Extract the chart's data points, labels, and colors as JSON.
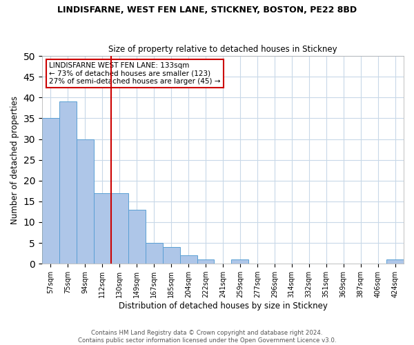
{
  "title": "LINDISFARNE, WEST FEN LANE, STICKNEY, BOSTON, PE22 8BD",
  "subtitle": "Size of property relative to detached houses in Stickney",
  "xlabel": "Distribution of detached houses by size in Stickney",
  "ylabel": "Number of detached properties",
  "bar_labels": [
    "57sqm",
    "75sqm",
    "94sqm",
    "112sqm",
    "130sqm",
    "149sqm",
    "167sqm",
    "185sqm",
    "204sqm",
    "222sqm",
    "241sqm",
    "259sqm",
    "277sqm",
    "296sqm",
    "314sqm",
    "332sqm",
    "351sqm",
    "369sqm",
    "387sqm",
    "406sqm",
    "424sqm"
  ],
  "bar_values": [
    35,
    39,
    30,
    17,
    17,
    13,
    5,
    4,
    2,
    1,
    0,
    1,
    0,
    0,
    0,
    0,
    0,
    0,
    0,
    0,
    1
  ],
  "bar_color": "#aec6e8",
  "bar_edge_color": "#5a9fd4",
  "grid_color": "#c8d8e8",
  "property_line_x": 3.5,
  "property_line_color": "#cc0000",
  "annotation_title": "LINDISFARNE WEST FEN LANE: 133sqm",
  "annotation_line1": "← 73% of detached houses are smaller (123)",
  "annotation_line2": "27% of semi-detached houses are larger (45) →",
  "annotation_box_color": "#cc0000",
  "ylim": [
    0,
    50
  ],
  "yticks": [
    0,
    5,
    10,
    15,
    20,
    25,
    30,
    35,
    40,
    45,
    50
  ],
  "footer_line1": "Contains HM Land Registry data © Crown copyright and database right 2024.",
  "footer_line2": "Contains public sector information licensed under the Open Government Licence v3.0."
}
